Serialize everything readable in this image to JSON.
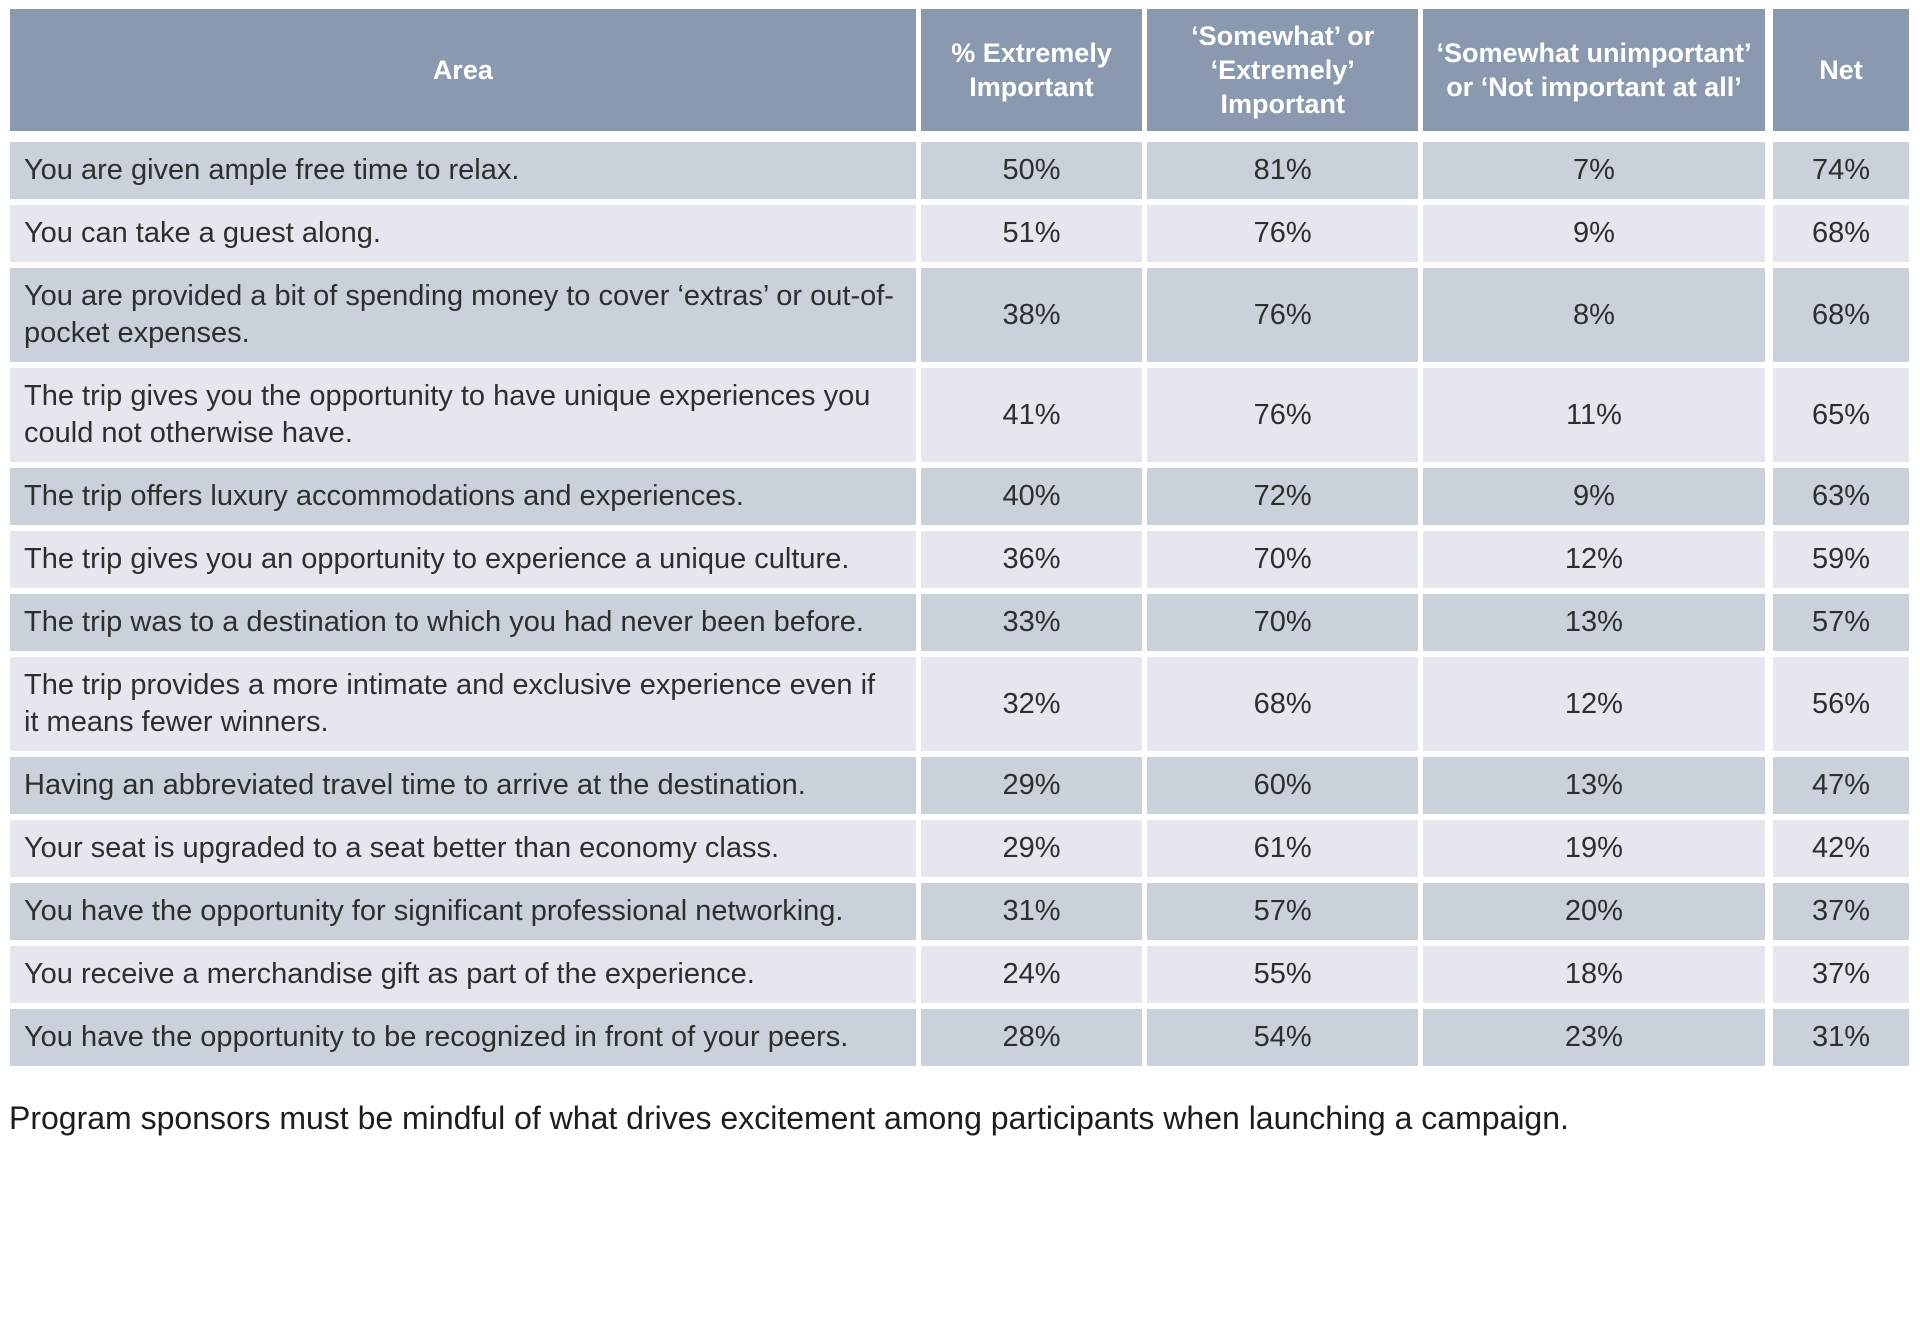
{
  "colors": {
    "header_bg": "#8A99AF",
    "row_dark": "#CBD1DB",
    "row_light": "#E4E8EE",
    "divider": "#FFFFFF",
    "header_text": "#FFFFFF",
    "body_text": "#2E2E2E"
  },
  "table": {
    "headers": [
      "Area",
      "% Extremely Important",
      "‘Somewhat’ or ‘Extremely’ Important",
      "‘Somewhat unimportant’ or ‘Not important at all’",
      "Net"
    ],
    "rows": [
      {
        "area": "You are given ample free time to relax.",
        "values": [
          "50%",
          "81%",
          "7%",
          "74%"
        ]
      },
      {
        "area": "You can take a guest along.",
        "values": [
          "51%",
          "76%",
          "9%",
          "68%"
        ]
      },
      {
        "area": "You are provided a bit of spending money to cover ‘extras’ or out-of-pocket expenses.",
        "values": [
          "38%",
          "76%",
          "8%",
          "68%"
        ]
      },
      {
        "area": "The trip gives you the opportunity to have unique experiences you could not otherwise have.",
        "values": [
          "41%",
          "76%",
          "11%",
          "65%"
        ]
      },
      {
        "area": "The trip offers luxury accommodations and experiences.",
        "values": [
          "40%",
          "72%",
          "9%",
          "63%"
        ]
      },
      {
        "area": "The trip gives you an opportunity to experience a unique culture.",
        "values": [
          "36%",
          "70%",
          "12%",
          "59%"
        ]
      },
      {
        "area": "The trip was to a destination to which you had never been before.",
        "values": [
          "33%",
          "70%",
          "13%",
          "57%"
        ]
      },
      {
        "area": "The trip provides a more intimate and exclusive experience even if it means fewer winners.",
        "values": [
          "32%",
          "68%",
          "12%",
          "56%"
        ]
      },
      {
        "area": "Having an abbreviated travel time to arrive at the destination.",
        "values": [
          "29%",
          "60%",
          "13%",
          "47%"
        ]
      },
      {
        "area": "Your seat is upgraded to a seat better than economy class.",
        "values": [
          "29%",
          "61%",
          "19%",
          "42%"
        ]
      },
      {
        "area": "You have the opportunity for significant professional networking.",
        "values": [
          "31%",
          "57%",
          "20%",
          "37%"
        ]
      },
      {
        "area": "You receive a merchandise gift as part of the experience.",
        "values": [
          "24%",
          "55%",
          "18%",
          "37%"
        ]
      },
      {
        "area": "You have the opportunity to be recognized in front of your peers.",
        "values": [
          "28%",
          "54%",
          "23%",
          "31%"
        ]
      }
    ]
  },
  "footer_note": "Program sponsors must be mindful of what drives excitement among participants when launching a campaign.",
  "chart_data": {
    "type": "table",
    "title": "",
    "columns": [
      "Area",
      "% Extremely Important",
      "‘Somewhat’ or ‘Extremely’ Important",
      "‘Somewhat unimportant’ or ‘Not important at all’",
      "Net"
    ],
    "rows": [
      [
        "You are given ample free time to relax.",
        "50%",
        "81%",
        "7%",
        "74%"
      ],
      [
        "You can take a guest along.",
        "51%",
        "76%",
        "9%",
        "68%"
      ],
      [
        "You are provided a bit of spending money to cover ‘extras’ or out-of-pocket expenses.",
        "38%",
        "76%",
        "8%",
        "68%"
      ],
      [
        "The trip gives you the opportunity to have unique experiences you could not otherwise have.",
        "41%",
        "76%",
        "11%",
        "65%"
      ],
      [
        "The trip offers luxury accommodations and experiences.",
        "40%",
        "72%",
        "9%",
        "63%"
      ],
      [
        "The trip gives you an opportunity to experience a unique culture.",
        "36%",
        "70%",
        "12%",
        "59%"
      ],
      [
        "The trip was to a destination to which you had never been before.",
        "33%",
        "70%",
        "13%",
        "57%"
      ],
      [
        "The trip provides a more intimate and exclusive experience even if it means fewer winners.",
        "32%",
        "68%",
        "12%",
        "56%"
      ],
      [
        "Having an abbreviated travel time to arrive at the destination.",
        "29%",
        "60%",
        "13%",
        "47%"
      ],
      [
        "Your seat is upgraded to a seat better than economy class.",
        "29%",
        "61%",
        "19%",
        "42%"
      ],
      [
        "You have the opportunity for significant professional networking.",
        "31%",
        "57%",
        "20%",
        "37%"
      ],
      [
        "You receive a merchandise gift as part of the experience.",
        "24%",
        "55%",
        "18%",
        "37%"
      ],
      [
        "You have the opportunity to be recognized in front of your peers.",
        "28%",
        "54%",
        "23%",
        "31%"
      ]
    ],
    "annotations": [
      "Program sponsors must be mindful of what drives excitement among participants when launching a campaign."
    ]
  }
}
